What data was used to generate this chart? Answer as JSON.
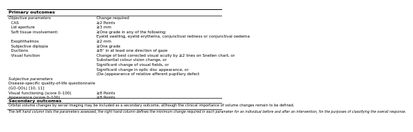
{
  "title": "Primary outcomes",
  "secondary_title": "Secondary outcomes",
  "bg_color": "#ffffff",
  "text_color": "#000000",
  "rows": [
    {
      "col1": "Objective parameters",
      "col2": "Change required",
      "italic": true,
      "indent": 0
    },
    {
      "col1": "  CAS",
      "col2": "≥2 Points",
      "italic": false,
      "indent": 0
    },
    {
      "col1": "  Lid aperture",
      "col2": "≥3 mm",
      "italic": false,
      "indent": 0
    },
    {
      "col1": "  Soft tissue involvement:",
      "col2": "≥One grade in any of the following:",
      "italic": false,
      "indent": 0
    },
    {
      "col1": "",
      "col2": "Eyelid swelling, eyelid erythema, conjunctival redness or conjunctival oedema",
      "italic": false,
      "indent": 0
    },
    {
      "col1": "  Exophthalmos",
      "col2": "≥2 mm",
      "italic": false,
      "indent": 0
    },
    {
      "col1": "  Subjective diplopia",
      "col2": "≥One grade",
      "italic": false,
      "indent": 0
    },
    {
      "col1": "  Ductions",
      "col2": "≥8° in at least one direction of gaze",
      "italic": false,
      "indent": 0
    },
    {
      "col1": "  Visual function",
      "col2": "Change of best corrected visual acuity by ≥2 lines on Snellen chart, or",
      "italic": false,
      "indent": 0
    },
    {
      "col1": "",
      "col2": "Substantial colour vision change, or",
      "italic": false,
      "indent": 0
    },
    {
      "col1": "",
      "col2": "Significant change of visual fields, or",
      "italic": false,
      "indent": 0
    },
    {
      "col1": "",
      "col2": "Significant change in optic disc appearance, or",
      "italic": false,
      "indent": 0
    },
    {
      "col1": "",
      "col2": "(De-)appearance of relative afferent pupillary defect",
      "italic": false,
      "indent": 0
    },
    {
      "col1": "Subjective parameters",
      "col2": "",
      "italic": true,
      "indent": 0
    },
    {
      "col1": "Disease-specific quality-of-life questionnaire",
      "col2": "",
      "italic": false,
      "indent": 0
    },
    {
      "col1": "(GO-QOL) [10, 11]",
      "col2": "",
      "italic": false,
      "indent": 0
    },
    {
      "col1": "Visual functioning (score 0–100)",
      "col2": "≥8 Points",
      "italic": false,
      "indent": 0
    },
    {
      "col1": "Appearance (score 0–100)",
      "col2": "≥8 Points",
      "italic": false,
      "indent": 0
    }
  ],
  "secondary_text": "Orbital volume changes by serial imaging may be included as a secondary outcome, although the clinical importance of volume changes remain to be defined.",
  "footnote": "The left hand column lists the parameters assessed, the right hand column defines the minimum change required in each parameter for an individual before and after an intervention, for the purposes of classifying the overall response.",
  "col_split": 0.415,
  "font_size": 4.0,
  "title_font_size": 4.6
}
